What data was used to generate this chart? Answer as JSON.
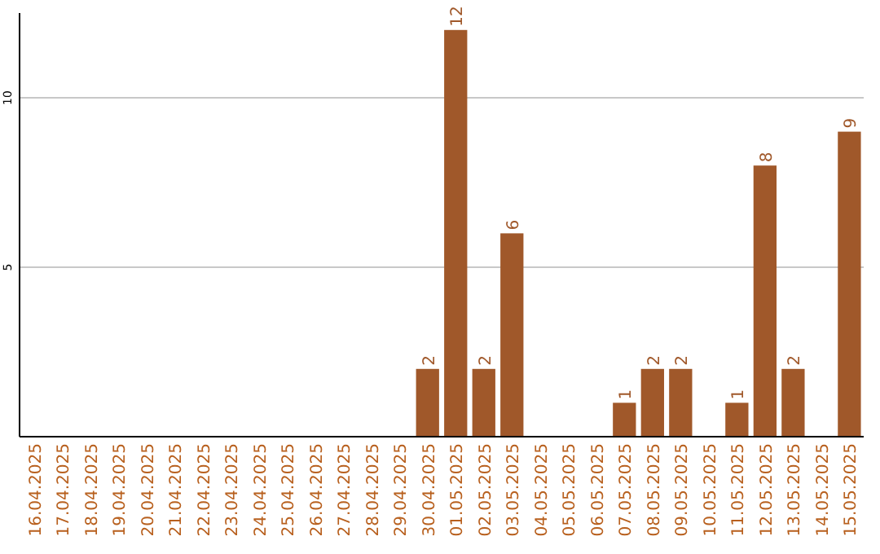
{
  "chart_data": {
    "type": "bar",
    "categories": [
      "16.04.2025",
      "17.04.2025",
      "18.04.2025",
      "19.04.2025",
      "20.04.2025",
      "21.04.2025",
      "22.04.2025",
      "23.04.2025",
      "24.04.2025",
      "25.04.2025",
      "26.04.2025",
      "27.04.2025",
      "28.04.2025",
      "29.04.2025",
      "30.04.2025",
      "01.05.2025",
      "02.05.2025",
      "03.05.2025",
      "04.05.2025",
      "05.05.2025",
      "06.05.2025",
      "07.05.2025",
      "08.05.2025",
      "09.05.2025",
      "10.05.2025",
      "11.05.2025",
      "12.05.2025",
      "13.05.2025",
      "14.05.2025",
      "15.05.2025"
    ],
    "values": [
      0,
      0,
      0,
      0,
      0,
      0,
      0,
      0,
      0,
      0,
      0,
      0,
      0,
      0,
      2,
      12,
      2,
      6,
      0,
      0,
      0,
      1,
      2,
      2,
      0,
      1,
      8,
      2,
      0,
      9
    ],
    "value_labels": [
      null,
      null,
      null,
      null,
      null,
      null,
      null,
      null,
      null,
      null,
      null,
      null,
      null,
      null,
      "2",
      "12",
      "2",
      "6",
      null,
      null,
      null,
      "1",
      "2",
      "2",
      null,
      "1",
      "8",
      "2",
      null,
      "9"
    ],
    "color": "#a0582a",
    "ylim": [
      0,
      12.5
    ],
    "yticks": [
      5,
      10
    ],
    "grid": "y"
  }
}
